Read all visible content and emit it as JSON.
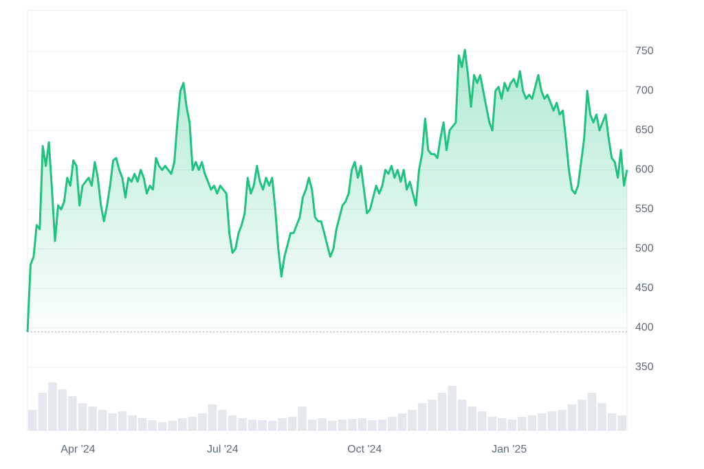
{
  "chart_data": {
    "type": "line",
    "series": [
      {
        "color": "#1fc37f",
        "values": [
          395,
          480,
          490,
          530,
          525,
          630,
          605,
          635,
          575,
          510,
          555,
          550,
          560,
          590,
          580,
          612,
          605,
          555,
          580,
          585,
          590,
          580,
          610,
          590,
          555,
          535,
          555,
          580,
          612,
          615,
          600,
          590,
          565,
          590,
          585,
          595,
          585,
          600,
          590,
          570,
          580,
          575,
          615,
          605,
          600,
          605,
          600,
          595,
          610,
          660,
          700,
          710,
          680,
          660,
          600,
          610,
          600,
          610,
          595,
          585,
          575,
          580,
          570,
          580,
          575,
          570,
          520,
          495,
          500,
          520,
          530,
          545,
          590,
          570,
          580,
          605,
          585,
          575,
          590,
          580,
          590,
          550,
          500,
          465,
          490,
          505,
          520,
          520,
          530,
          540,
          565,
          575,
          590,
          575,
          540,
          535,
          535,
          520,
          505,
          490,
          500,
          525,
          540,
          555,
          560,
          570,
          600,
          610,
          590,
          605,
          575,
          545,
          550,
          565,
          580,
          570,
          580,
          600,
          595,
          605,
          590,
          600,
          585,
          600,
          575,
          585,
          570,
          555,
          600,
          620,
          665,
          625,
          620,
          620,
          615,
          640,
          660,
          625,
          650,
          655,
          660,
          745,
          730,
          752,
          720,
          680,
          720,
          710,
          720,
          700,
          680,
          660,
          650,
          700,
          705,
          690,
          710,
          700,
          710,
          715,
          705,
          725,
          700,
          690,
          695,
          690,
          705,
          720,
          700,
          690,
          695,
          685,
          675,
          685,
          670,
          675,
          640,
          600,
          575,
          570,
          580,
          610,
          640,
          700,
          670,
          660,
          670,
          650,
          660,
          670,
          640,
          615,
          610,
          590,
          625,
          580,
          600
        ]
      }
    ],
    "baseline": 395,
    "volume": [
      30,
      55,
      70,
      60,
      50,
      40,
      35,
      30,
      25,
      28,
      22,
      18,
      15,
      12,
      14,
      18,
      20,
      25,
      38,
      30,
      22,
      18,
      16,
      15,
      14,
      18,
      20,
      35,
      16,
      18,
      14,
      16,
      17,
      18,
      15,
      16,
      20,
      25,
      30,
      40,
      45,
      55,
      65,
      45,
      35,
      28,
      20,
      18,
      16,
      20,
      22,
      25,
      28,
      30,
      38,
      45,
      55,
      40,
      25,
      22
    ],
    "ylim": [
      270,
      802
    ],
    "yticks": [
      350,
      400,
      450,
      500,
      550,
      600,
      650,
      700,
      750
    ],
    "xlim": [
      0,
      196
    ],
    "xticks": [
      {
        "value": 16.5,
        "label": "Apr '24"
      },
      {
        "value": 63.8,
        "label": "Jul '24"
      },
      {
        "value": 110.2,
        "label": "Oct '24"
      },
      {
        "value": 157.5,
        "label": "Jan '25"
      }
    ],
    "grid": true
  }
}
